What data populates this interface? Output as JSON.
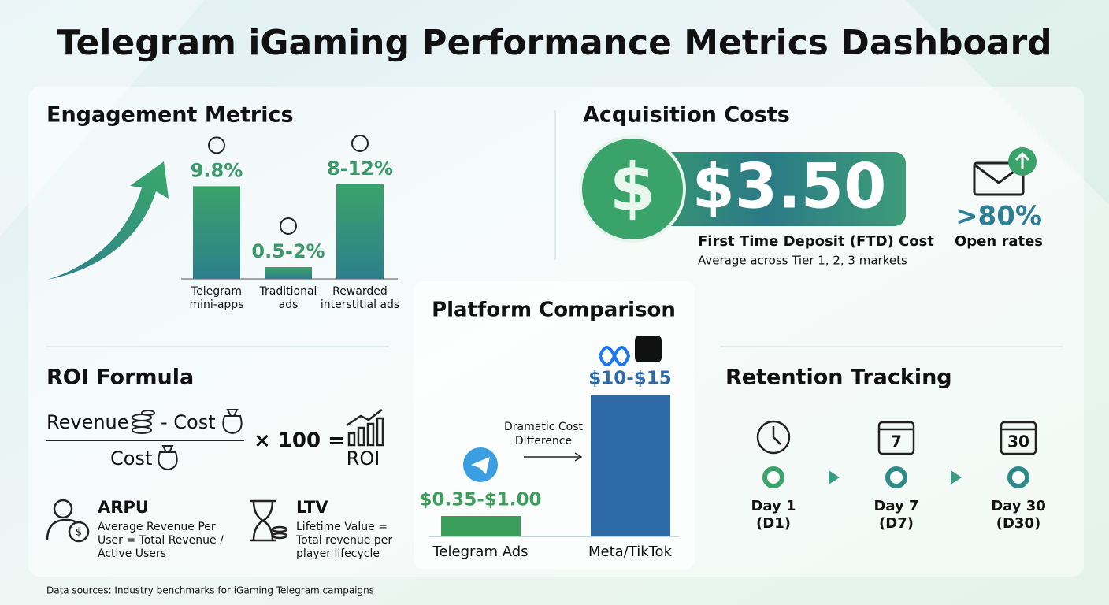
{
  "title": "Telegram iGaming Performance Metrics Dashboard",
  "engagement": {
    "heading": "Engagement Metrics",
    "bars": [
      {
        "label_lines": [
          "Telegram",
          "mini-apps"
        ],
        "value_label": "9.8%",
        "low": 9.8,
        "high": 9.8
      },
      {
        "label_lines": [
          "Traditional",
          "ads"
        ],
        "value_label": "0.5-2%",
        "low": 0.5,
        "high": 2
      },
      {
        "label_lines": [
          "Rewarded",
          "interstitial ads"
        ],
        "value_label": "8-12%",
        "low": 8,
        "high": 12
      }
    ]
  },
  "acquisition": {
    "heading": "Acquisition Costs",
    "cost": "$3.50",
    "cost_label": "First Time Deposit (FTD) Cost",
    "cost_note": "Average across Tier 1, 2, 3 markets",
    "open_rate": ">80%",
    "open_rate_label": "Open rates"
  },
  "roi": {
    "heading": "ROI Formula",
    "numerator_a": "Revenue",
    "numerator_b": "- Cost",
    "denominator": "Cost",
    "multiplier": "× 100 =",
    "result": "ROI",
    "metrics": [
      {
        "name": "ARPU",
        "description_lines": [
          "Average Revenue Per",
          "User = Total Revenue /",
          "Active Users"
        ]
      },
      {
        "name": "LTV",
        "description_lines": [
          "Lifetime Value =",
          "Total revenue per",
          "player lifecycle"
        ]
      }
    ]
  },
  "platform": {
    "heading": "Platform Comparison",
    "annotation_lines": [
      "Dramatic Cost",
      "Difference"
    ],
    "bars": [
      {
        "label": "Telegram Ads",
        "value_label": "$0.35-$1.00",
        "low": 0.35,
        "high": 1.0
      },
      {
        "label": "Meta/TikTok",
        "value_label": "$10-$15",
        "low": 10,
        "high": 15
      }
    ]
  },
  "retention": {
    "heading": "Retention Tracking",
    "milestones": [
      {
        "icon_label": null,
        "label": "Day 1",
        "code": "(D1)"
      },
      {
        "icon_label": "7",
        "label": "Day 7",
        "code": "(D7)"
      },
      {
        "icon_label": "30",
        "label": "Day 30",
        "code": "(D30)"
      }
    ]
  },
  "footer": "Data sources: Industry benchmarks for iGaming Telegram campaigns"
}
